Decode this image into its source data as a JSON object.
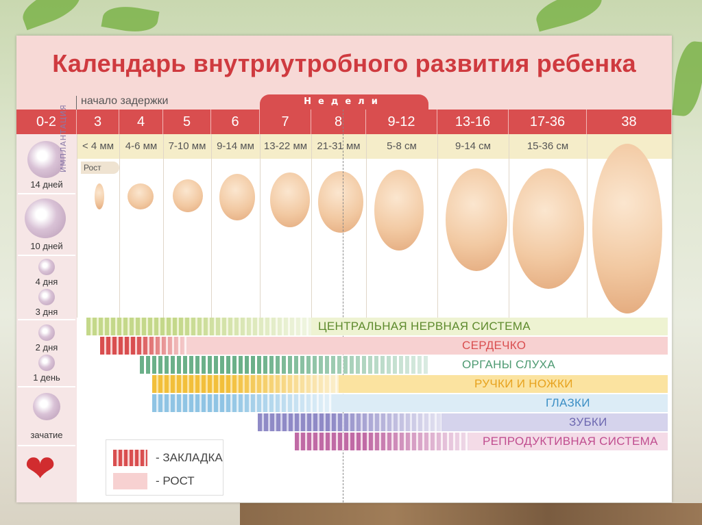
{
  "title": "Календарь внутриутробного развития ребенка",
  "delay_label": "начало задержки",
  "weeks_tab": "Недели",
  "weeks": [
    {
      "label": "0-2",
      "size": ""
    },
    {
      "label": "3",
      "size": "< 4 мм"
    },
    {
      "label": "4",
      "size": "4-6 мм"
    },
    {
      "label": "5",
      "size": "7-10 мм"
    },
    {
      "label": "6",
      "size": "9-14 мм"
    },
    {
      "label": "7",
      "size": "13-22 мм"
    },
    {
      "label": "8",
      "size": "21-31 мм"
    },
    {
      "label": "9-12",
      "size": "5-8 см"
    },
    {
      "label": "13-16",
      "size": "9-14 см"
    },
    {
      "label": "17-36",
      "size": "15-36 см"
    },
    {
      "label": "38",
      "size": ""
    }
  ],
  "growth_tag": "Рост",
  "implantation_label": "ИМПЛАНТАЦИЯ",
  "left_stages": [
    "14 дней",
    "10 дней",
    "4 дня",
    "3 дня",
    "2 дня",
    "1 день",
    "зачатие"
  ],
  "systems": [
    {
      "label": "ЦЕНТРАЛЬНАЯ НЕРВНАЯ СИСТЕМА",
      "color": "#c4d88a",
      "grow": "#eef3d2",
      "text": "#5d8a2c"
    },
    {
      "label": "СЕРДЕЧКО",
      "color": "#d94e4f",
      "grow": "#f7d1d1",
      "text": "#d94e4f"
    },
    {
      "label": "ОРГАНЫ СЛУХА",
      "color": "#6bb089",
      "grow": "#ffffff",
      "text": "#4e9a72"
    },
    {
      "label": "РУЧКИ И НОЖКИ",
      "color": "#f2bf3a",
      "grow": "#fbe3a0",
      "text": "#e7a21e"
    },
    {
      "label": "ГЛАЗКИ",
      "color": "#8fc4e4",
      "grow": "#dcecf6",
      "text": "#3a8ec4"
    },
    {
      "label": "ЗУБКИ",
      "color": "#8f8ac6",
      "grow": "#d5d3ec",
      "text": "#6d68b0"
    },
    {
      "label": "РЕПРОДУКТИВНАЯ СИСТЕМА",
      "color": "#c06aa5",
      "grow": "#f4dbe7",
      "text": "#c04d8f"
    }
  ],
  "legend": {
    "onset": "- ЗАКЛАДКА",
    "growth": "- РОСТ"
  },
  "heart_icon": "heart-icon"
}
